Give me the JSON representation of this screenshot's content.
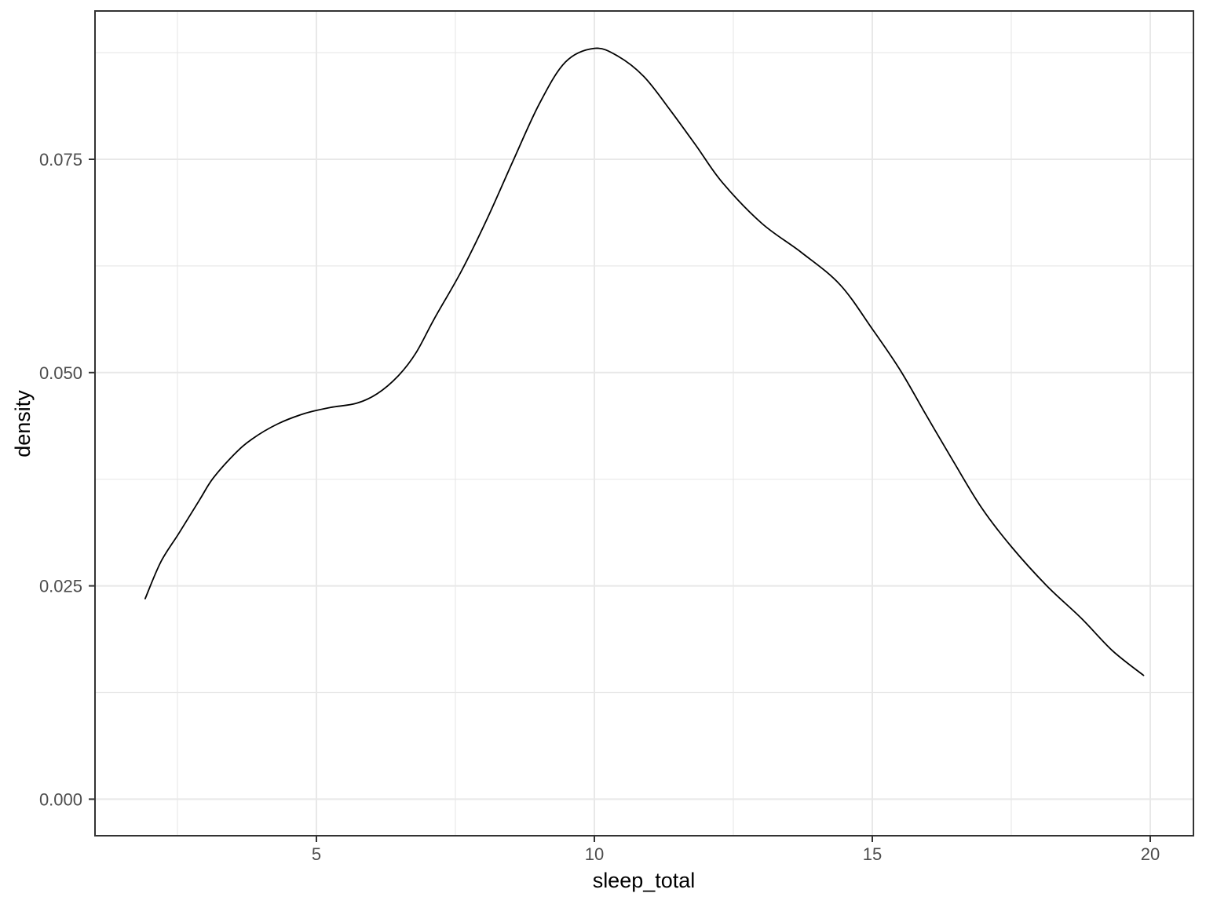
{
  "chart_data": {
    "type": "line",
    "title": "",
    "xlabel": "sleep_total",
    "ylabel": "density",
    "grid": true,
    "legend": false,
    "xlim": [
      1.017,
      20.777
    ],
    "ylim": [
      -0.00429,
      0.09238
    ],
    "x_ticks": {
      "major": [
        5,
        10,
        15,
        20
      ],
      "labels": [
        "5",
        "10",
        "15",
        "20"
      ],
      "minor": [
        2.5,
        7.5,
        12.5,
        17.5
      ]
    },
    "y_ticks": {
      "major": [
        0.0,
        0.025,
        0.05,
        0.075
      ],
      "labels": [
        "0.000",
        "0.025",
        "0.050",
        "0.075"
      ],
      "minor": [
        0.0125,
        0.0375,
        0.0625,
        0.0875
      ]
    },
    "series": [
      {
        "name": "density of sleep_total",
        "points": [
          [
            1.92,
            0.0235
          ],
          [
            2.2,
            0.0278
          ],
          [
            2.53,
            0.0312
          ],
          [
            2.9,
            0.0351
          ],
          [
            3.14,
            0.0376
          ],
          [
            3.52,
            0.0404
          ],
          [
            3.84,
            0.0422
          ],
          [
            4.31,
            0.044
          ],
          [
            4.79,
            0.0452
          ],
          [
            5.25,
            0.0459
          ],
          [
            5.72,
            0.0464
          ],
          [
            6.09,
            0.0475
          ],
          [
            6.47,
            0.0496
          ],
          [
            6.79,
            0.0523
          ],
          [
            7.12,
            0.0563
          ],
          [
            7.6,
            0.0618
          ],
          [
            8.07,
            0.068
          ],
          [
            8.53,
            0.0747
          ],
          [
            9.01,
            0.0815
          ],
          [
            9.48,
            0.0864
          ],
          [
            10.0,
            0.088
          ],
          [
            10.42,
            0.0871
          ],
          [
            10.89,
            0.0847
          ],
          [
            11.36,
            0.0808
          ],
          [
            11.84,
            0.0765
          ],
          [
            12.3,
            0.0723
          ],
          [
            13.01,
            0.0675
          ],
          [
            13.72,
            0.0641
          ],
          [
            14.42,
            0.0603
          ],
          [
            15.0,
            0.0551
          ],
          [
            15.51,
            0.0502
          ],
          [
            15.97,
            0.045
          ],
          [
            16.44,
            0.0398
          ],
          [
            16.96,
            0.0342
          ],
          [
            17.5,
            0.0296
          ],
          [
            18.14,
            0.025
          ],
          [
            18.76,
            0.0212
          ],
          [
            19.32,
            0.0174
          ],
          [
            19.88,
            0.0145
          ]
        ]
      }
    ],
    "colors": {
      "line": "#000000",
      "grid": "#E8E8E8",
      "panel_border": "#333333",
      "tick_mark": "#333333",
      "axis_text": "#4D4D4D",
      "axis_title": "#000000",
      "background": "#FFFFFF"
    }
  }
}
